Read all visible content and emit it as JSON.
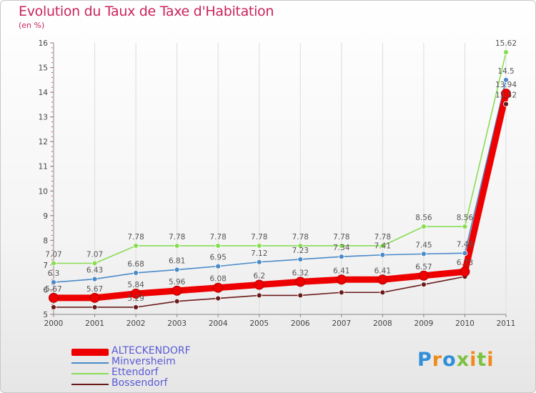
{
  "chart_data": {
    "type": "line",
    "title": "Evolution du Taux de Taxe d'Habitation",
    "subtitle": "(en %)",
    "categories": [
      "2000",
      "2001",
      "2002",
      "2003",
      "2004",
      "2005",
      "2006",
      "2007",
      "2008",
      "2009",
      "2010",
      "2011"
    ],
    "yticks": [
      5,
      6,
      7,
      8,
      9,
      10,
      11,
      12,
      13,
      14,
      15,
      16
    ],
    "ylim": [
      5,
      16
    ],
    "series": [
      {
        "name": "Bossendorf",
        "color": "#6b1a1a",
        "values": [
          5.29,
          5.29,
          5.29,
          5.53,
          5.65,
          5.77,
          5.77,
          5.89,
          5.89,
          6.21,
          6.53,
          13.52
        ],
        "labels": [
          "",
          "",
          "5.29",
          "",
          "",
          "",
          "",
          "",
          "",
          "",
          "",
          "13.52"
        ]
      },
      {
        "name": "Ettendorf",
        "color": "#88dd55",
        "values": [
          7.07,
          7.07,
          7.78,
          7.78,
          7.78,
          7.78,
          7.78,
          7.78,
          7.78,
          8.56,
          8.56,
          15.62
        ],
        "labels": [
          "7.07",
          "7.07",
          "7.78",
          "7.78",
          "7.78",
          "7.78",
          "7.78",
          "7.78",
          "7.78",
          "8.56",
          "8.56",
          "15.62"
        ]
      },
      {
        "name": "Minversheim",
        "color": "#4a8ac8",
        "values": [
          6.3,
          6.43,
          6.68,
          6.81,
          6.95,
          7.12,
          7.23,
          7.34,
          7.41,
          7.45,
          7.48,
          14.5
        ],
        "labels": [
          "6.3",
          "6.43",
          "6.68",
          "6.81",
          "6.95",
          "7.12",
          "7.23",
          "7.34",
          "7.41",
          "7.45",
          "7.48",
          "14.5"
        ]
      },
      {
        "name": "ALTECKENDORF",
        "color": "#ee0000",
        "values": [
          5.67,
          5.67,
          5.84,
          5.96,
          6.08,
          6.2,
          6.32,
          6.41,
          6.41,
          6.57,
          6.73,
          13.94
        ],
        "labels": [
          "5.67",
          "5.67",
          "5.84",
          "5.96",
          "6.08",
          "6.2",
          "6.32",
          "6.41",
          "6.41",
          "6.57",
          "6.73",
          "13.94"
        ]
      }
    ]
  },
  "legend": [
    {
      "label": "ALTECKENDORF",
      "color": "#ee0000",
      "thick": true
    },
    {
      "label": "Minversheim",
      "color": "#4a8ac8",
      "thick": false
    },
    {
      "label": "Ettendorf",
      "color": "#88dd55",
      "thick": false
    },
    {
      "label": "Bossendorf",
      "color": "#6b1a1a",
      "thick": false
    }
  ],
  "logo": {
    "text": "Proxiti"
  }
}
